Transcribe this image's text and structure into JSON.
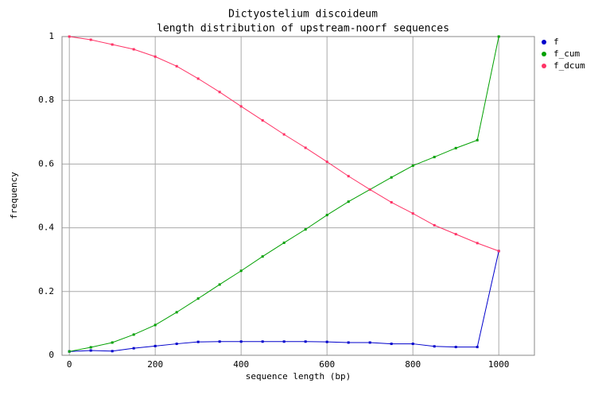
{
  "chart_data": {
    "type": "line",
    "title": "Dictyostelium discoideum",
    "subtitle": "length distribution of upstream-noorf sequences",
    "x_label": "sequence length (bp)",
    "y_label": "frequency",
    "x": [
      0,
      50,
      100,
      150,
      200,
      250,
      300,
      350,
      400,
      450,
      500,
      550,
      600,
      650,
      700,
      750,
      800,
      850,
      900,
      950,
      1000
    ],
    "series": [
      {
        "name": "f",
        "color": "#0000cc",
        "values": [
          0.012,
          0.015,
          0.013,
          0.022,
          0.029,
          0.036,
          0.042,
          0.043,
          0.043,
          0.043,
          0.043,
          0.043,
          0.042,
          0.04,
          0.04,
          0.036,
          0.036,
          0.028,
          0.026,
          0.026,
          0.327
        ]
      },
      {
        "name": "f_cum",
        "color": "#00a000",
        "values": [
          0.012,
          0.025,
          0.04,
          0.065,
          0.095,
          0.135,
          0.178,
          0.222,
          0.265,
          0.31,
          0.353,
          0.395,
          0.44,
          0.482,
          0.52,
          0.558,
          0.595,
          0.622,
          0.65,
          0.675,
          1
        ]
      },
      {
        "name": "f_dcum",
        "color": "#ff3366",
        "values": [
          1,
          0.99,
          0.975,
          0.96,
          0.937,
          0.907,
          0.868,
          0.826,
          0.781,
          0.737,
          0.693,
          0.651,
          0.607,
          0.562,
          0.52,
          0.48,
          0.445,
          0.408,
          0.38,
          0.352,
          0.327
        ]
      }
    ],
    "xlim": [
      -17,
      1083
    ],
    "xticks": [
      0,
      200,
      400,
      600,
      800,
      1000
    ],
    "ylim": [
      0,
      1
    ],
    "yticks": [
      0,
      0.2,
      0.4,
      0.6,
      0.8,
      1
    ],
    "grid": true,
    "legend": "top-right"
  }
}
